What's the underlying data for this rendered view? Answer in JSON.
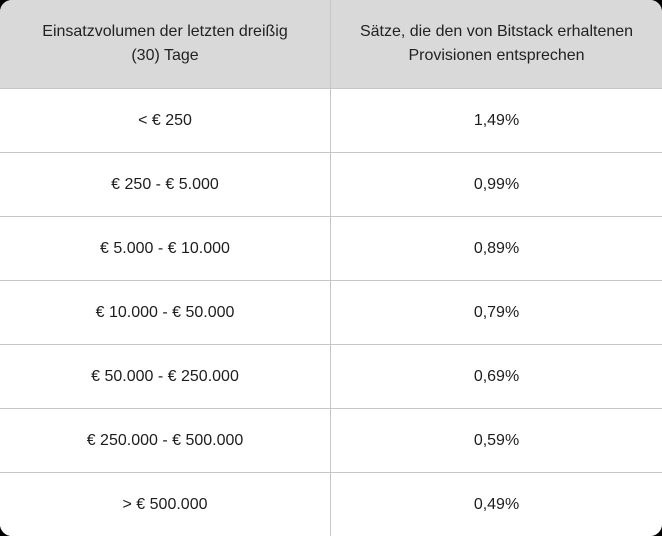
{
  "table": {
    "headers": [
      {
        "line1": "Einsatzvolumen der letzten dreißig",
        "line2": "(30) Tage"
      },
      {
        "line1": "Sätze, die den von Bitstack erhaltenen",
        "line2": "Provisionen entsprechen"
      }
    ],
    "rows": [
      {
        "volume": "< € 250",
        "rate": "1,49%"
      },
      {
        "volume": "€ 250 - € 5.000",
        "rate": "0,99%"
      },
      {
        "volume": "€ 5.000 - € 10.000",
        "rate": "0,89%"
      },
      {
        "volume": "€ 10.000 - € 50.000",
        "rate": "0,79%"
      },
      {
        "volume": "€ 50.000 - € 250.000",
        "rate": "0,69%"
      },
      {
        "volume": "€ 250.000 - € 500.000",
        "rate": "0,59%"
      },
      {
        "volume": "> € 500.000",
        "rate": "0,49%"
      }
    ],
    "colors": {
      "header_background": "#d9d9d9",
      "cell_background": "#ffffff",
      "border": "#c6c6c8",
      "text": "#1d1d1f",
      "page_background": "#000000"
    }
  }
}
